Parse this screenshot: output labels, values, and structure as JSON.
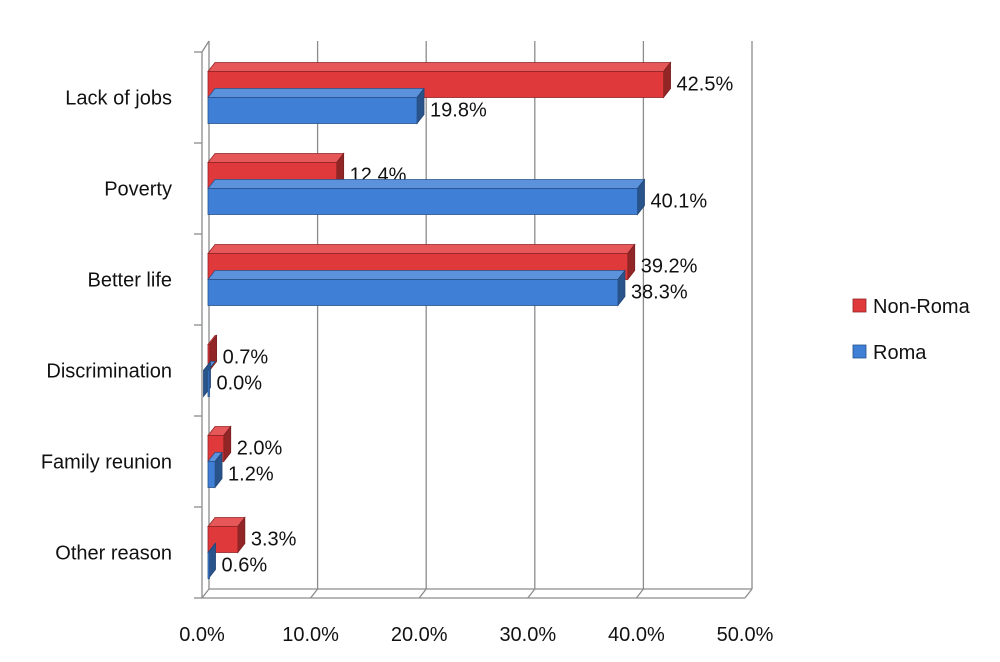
{
  "chart_data": {
    "type": "bar",
    "orientation": "horizontal",
    "style": "3d",
    "categories": [
      "Lack of jobs",
      "Poverty",
      "Better life",
      "Discrimination",
      "Family reunion",
      "Other reason"
    ],
    "series": [
      {
        "name": "Non-Roma",
        "color": "#e0393b",
        "values": [
          42.5,
          12.4,
          39.2,
          0.7,
          2.0,
          3.3
        ],
        "labels": [
          "42.5%",
          "12.4%",
          "39.2%",
          "0.7%",
          "2.0%",
          "3.3%"
        ]
      },
      {
        "name": "Roma",
        "color": "#3f7fd6",
        "values": [
          19.8,
          40.1,
          38.3,
          0.0,
          1.2,
          0.6
        ],
        "labels": [
          "19.8%",
          "40.1%",
          "38.3%",
          "0.0%",
          "1.2%",
          "0.6%"
        ]
      }
    ],
    "xlim": [
      0,
      50
    ],
    "ticks": [
      "0.0%",
      "10.0%",
      "20.0%",
      "30.0%",
      "40.0%",
      "50.0%"
    ],
    "grid": true,
    "legend_position": "right"
  }
}
